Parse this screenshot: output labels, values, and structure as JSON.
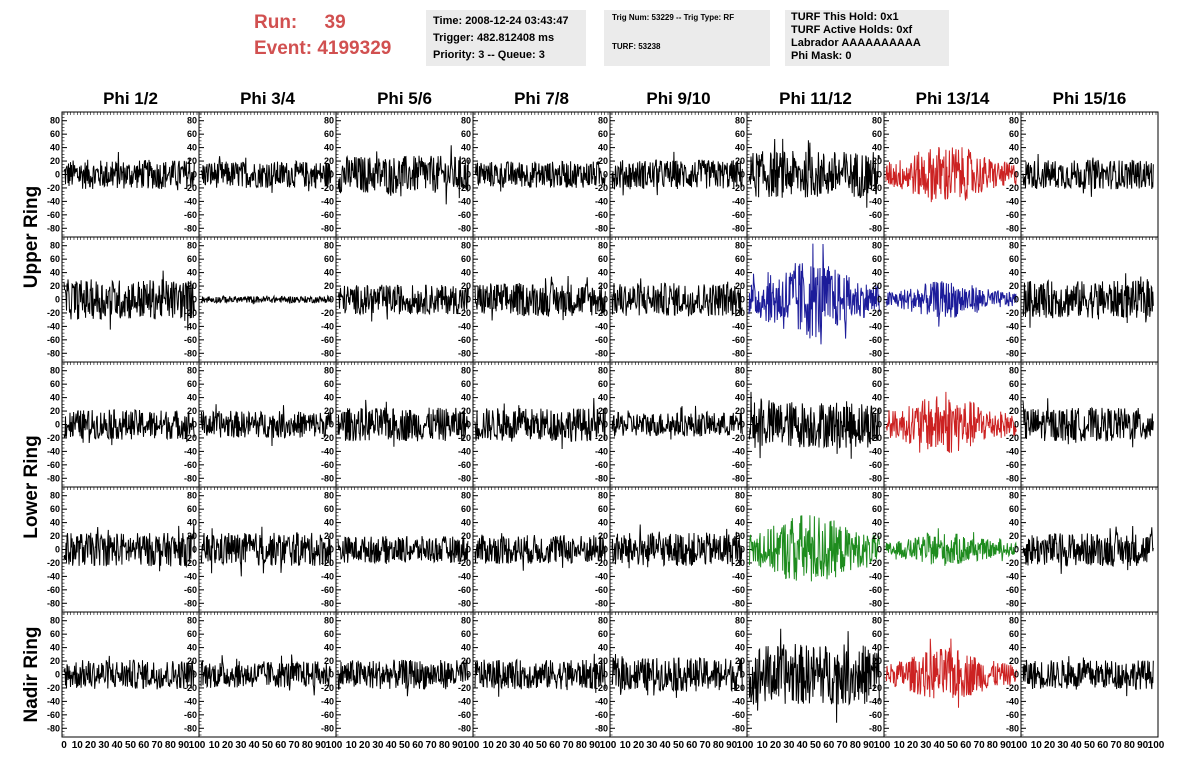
{
  "header": {
    "run_label": "Run:",
    "run_value": "39",
    "event_label": "Event:",
    "event_value": "4199329"
  },
  "info_time": {
    "line1": "Time: 2008-12-24 03:43:47",
    "line2": "Trigger: 482.812408 ms",
    "line3": "Priority: 3 -- Queue: 3"
  },
  "info_trig": {
    "line1": "Trig Num: 53229 -- Trig Type: RF",
    "line2": "TURF: 53238"
  },
  "info_turf": {
    "line1": "TURF This Hold: 0x1",
    "line2": "TURF Active Holds: 0xf",
    "line3": "Labrador AAAAAAAAAA",
    "line4": "Phi Mask: 0"
  },
  "chart_data": {
    "type": "line",
    "columns": [
      "Phi 1/2",
      "Phi 3/4",
      "Phi 5/6",
      "Phi 7/8",
      "Phi 9/10",
      "Phi 11/12",
      "Phi 13/14",
      "Phi 15/16"
    ],
    "rows": [
      {
        "row": 0,
        "ring": "Upper Ring"
      },
      {
        "row": 1,
        "ring": "Upper Ring"
      },
      {
        "row": 2,
        "ring": "Lower Ring"
      },
      {
        "row": 3,
        "ring": "Lower Ring"
      },
      {
        "row": 4,
        "ring": "Nadir Ring"
      }
    ],
    "ring_labels": [
      {
        "text": "Upper Ring",
        "rows": [
          0,
          1
        ]
      },
      {
        "text": "Lower Ring",
        "rows": [
          2,
          3
        ]
      },
      {
        "text": "Nadir Ring",
        "rows": [
          4
        ]
      }
    ],
    "ylim": [
      -90,
      90
    ],
    "y_ticks": [
      -80,
      -60,
      -40,
      -20,
      0,
      20,
      40,
      60,
      80
    ],
    "xlim": [
      0,
      100
    ],
    "x_ticks": [
      0,
      10,
      20,
      30,
      40,
      50,
      60,
      70,
      80,
      90,
      100
    ],
    "points_per_trace": 260,
    "colors": {
      "default": "#000000",
      "red": "#cc2222",
      "blue": "#1c1c9a",
      "green": "#1e8c1e"
    },
    "highlighted": [
      {
        "row": 0,
        "col": 6,
        "color": "red",
        "amplitude": 45
      },
      {
        "row": 1,
        "col": 5,
        "color": "blue",
        "amplitude": 60
      },
      {
        "row": 1,
        "col": 6,
        "color": "blue",
        "amplitude": 28
      },
      {
        "row": 2,
        "col": 6,
        "color": "red",
        "amplitude": 45
      },
      {
        "row": 3,
        "col": 5,
        "color": "green",
        "amplitude": 55
      },
      {
        "row": 3,
        "col": 6,
        "color": "green",
        "amplitude": 25
      },
      {
        "row": 4,
        "col": 6,
        "color": "red",
        "amplitude": 40
      }
    ],
    "amplitudes": [
      [
        22,
        20,
        28,
        20,
        22,
        35,
        45,
        22
      ],
      [
        30,
        5,
        22,
        25,
        25,
        60,
        28,
        28
      ],
      [
        22,
        20,
        25,
        25,
        18,
        35,
        45,
        25
      ],
      [
        25,
        25,
        20,
        22,
        25,
        55,
        25,
        25
      ],
      [
        22,
        20,
        22,
        22,
        25,
        45,
        40,
        22
      ]
    ]
  }
}
